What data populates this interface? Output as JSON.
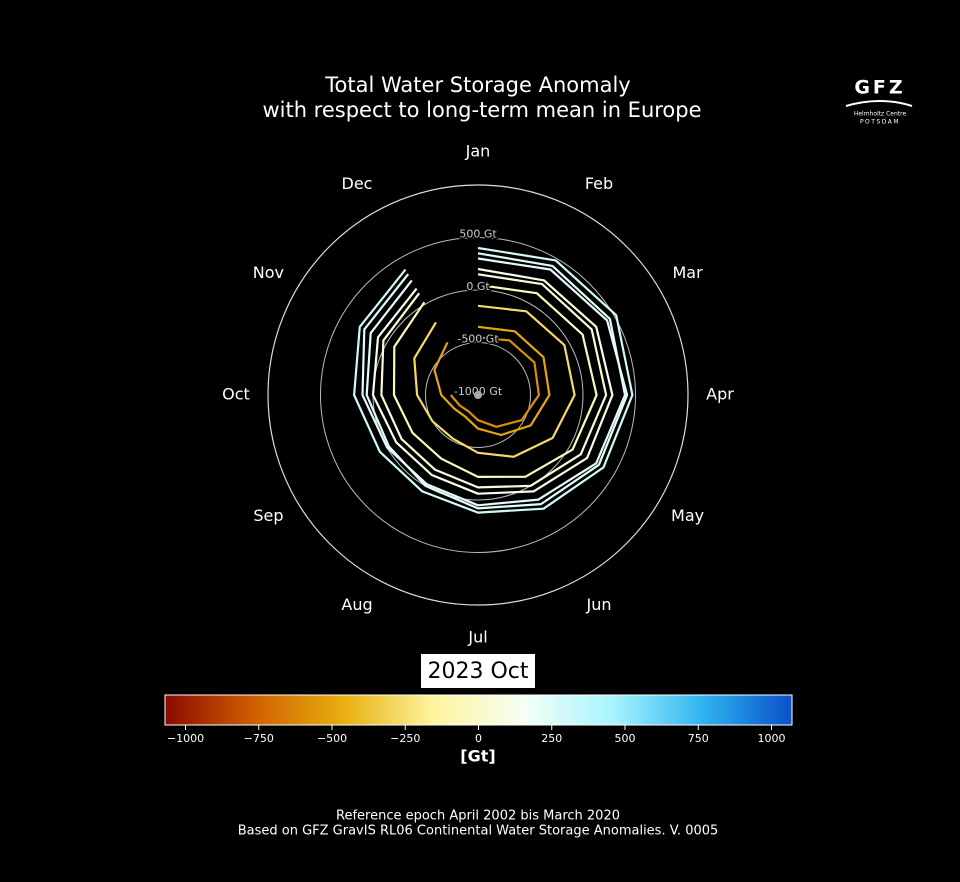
{
  "chart_data": {
    "type": "polar-line",
    "title": [
      "Total Water Storage Anomaly",
      "with respect to long-term mean in Europe"
    ],
    "categories": [
      "Jan",
      "Feb",
      "Mar",
      "Apr",
      "May",
      "Jun",
      "Jul",
      "Aug",
      "Sep",
      "Oct",
      "Nov",
      "Dec"
    ],
    "rlim": [
      -1000,
      1000
    ],
    "rticks": [
      {
        "value": 500,
        "label": "500 Gt"
      },
      {
        "value": 0,
        "label": "0 Gt"
      },
      {
        "value": -500,
        "label": "-500 Gt"
      },
      {
        "value": -1000,
        "label": "-1000 Gt"
      }
    ],
    "series": [
      {
        "values": [
          400,
          480,
          520,
          470,
          380,
          250,
          120,
          60,
          80,
          180,
          300,
          380
        ]
      },
      {
        "values": [
          350,
          420,
          450,
          400,
          300,
          150,
          50,
          -20,
          0,
          100,
          250,
          330
        ]
      },
      {
        "values": [
          300,
          380,
          420,
          420,
          330,
          200,
          80,
          0,
          -20,
          60,
          180,
          260
        ]
      },
      {
        "values": [
          200,
          260,
          300,
          280,
          200,
          60,
          -60,
          -120,
          -100,
          0,
          100,
          170
        ]
      },
      {
        "values": [
          150,
          220,
          250,
          220,
          130,
          0,
          -120,
          -180,
          -160,
          -80,
          40,
          120
        ]
      },
      {
        "values": [
          50,
          120,
          150,
          130,
          40,
          -100,
          -220,
          -300,
          -280,
          -200,
          -80,
          20
        ]
      },
      {
        "values": [
          -150,
          -80,
          -50,
          -80,
          -180,
          -320,
          -450,
          -520,
          -500,
          -420,
          -300,
          -200
        ]
      },
      {
        "values": [
          -350,
          -300,
          -280,
          -320,
          -420,
          -560,
          -680,
          -760,
          -740,
          -650,
          -520,
          -420
        ]
      },
      {
        "values": [
          -450,
          -400,
          -380,
          -420,
          -520,
          -650,
          -760,
          -820,
          -800,
          -740,
          null,
          null
        ]
      }
    ],
    "date_label": "2023 Oct",
    "colorbar": {
      "clim": [
        -1070,
        1070
      ],
      "colors": [
        "#8b0a00",
        "#d06000",
        "#e8b010",
        "#fff4a0",
        "#f5fff5",
        "#a8f4ff",
        "#30b4f0",
        "#0a50c8"
      ],
      "ticks": [
        {
          "value": -1000,
          "label": "−1000"
        },
        {
          "value": -750,
          "label": "−750"
        },
        {
          "value": -500,
          "label": "−500"
        },
        {
          "value": -250,
          "label": "−250"
        },
        0,
        250,
        500,
        750,
        1000
      ],
      "label": "[Gt]"
    },
    "logo": {
      "name": "GFZ",
      "line1": "Helmholtz Centre",
      "line2": "POTSDAM"
    },
    "footer": [
      "Reference epoch April 2002 bis March 2020",
      "Based on GFZ GravIS RL06 Continental Water Storage Anomalies. V. 0005"
    ]
  }
}
